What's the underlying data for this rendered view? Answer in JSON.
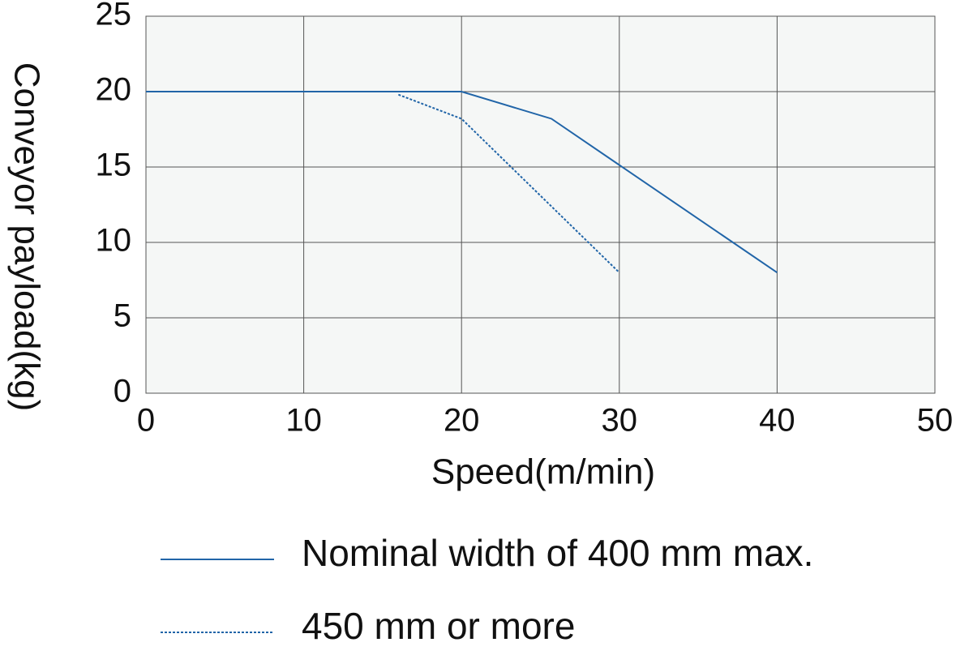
{
  "chart_data": {
    "type": "line",
    "x_label": "Speed(m/min)",
    "y_label": "Conveyor payload(kg)",
    "xlim": [
      0,
      50
    ],
    "xticks": [
      0,
      10,
      20,
      30,
      40,
      50
    ],
    "ylim": [
      0,
      25
    ],
    "yticks": [
      0,
      5,
      10,
      15,
      20,
      25
    ],
    "grid": true,
    "series": [
      {
        "name": "Nominal width of 400 mm max.",
        "color": "#2165a8",
        "style": "solid",
        "x": [
          0,
          20,
          25.7,
          40
        ],
        "values": [
          20,
          20,
          18.2,
          8
        ]
      },
      {
        "name": "450 mm or more",
        "color": "#2165a8",
        "style": "dotted",
        "x": [
          16,
          20,
          30
        ],
        "values": [
          19.8,
          18.2,
          8
        ]
      }
    ]
  }
}
